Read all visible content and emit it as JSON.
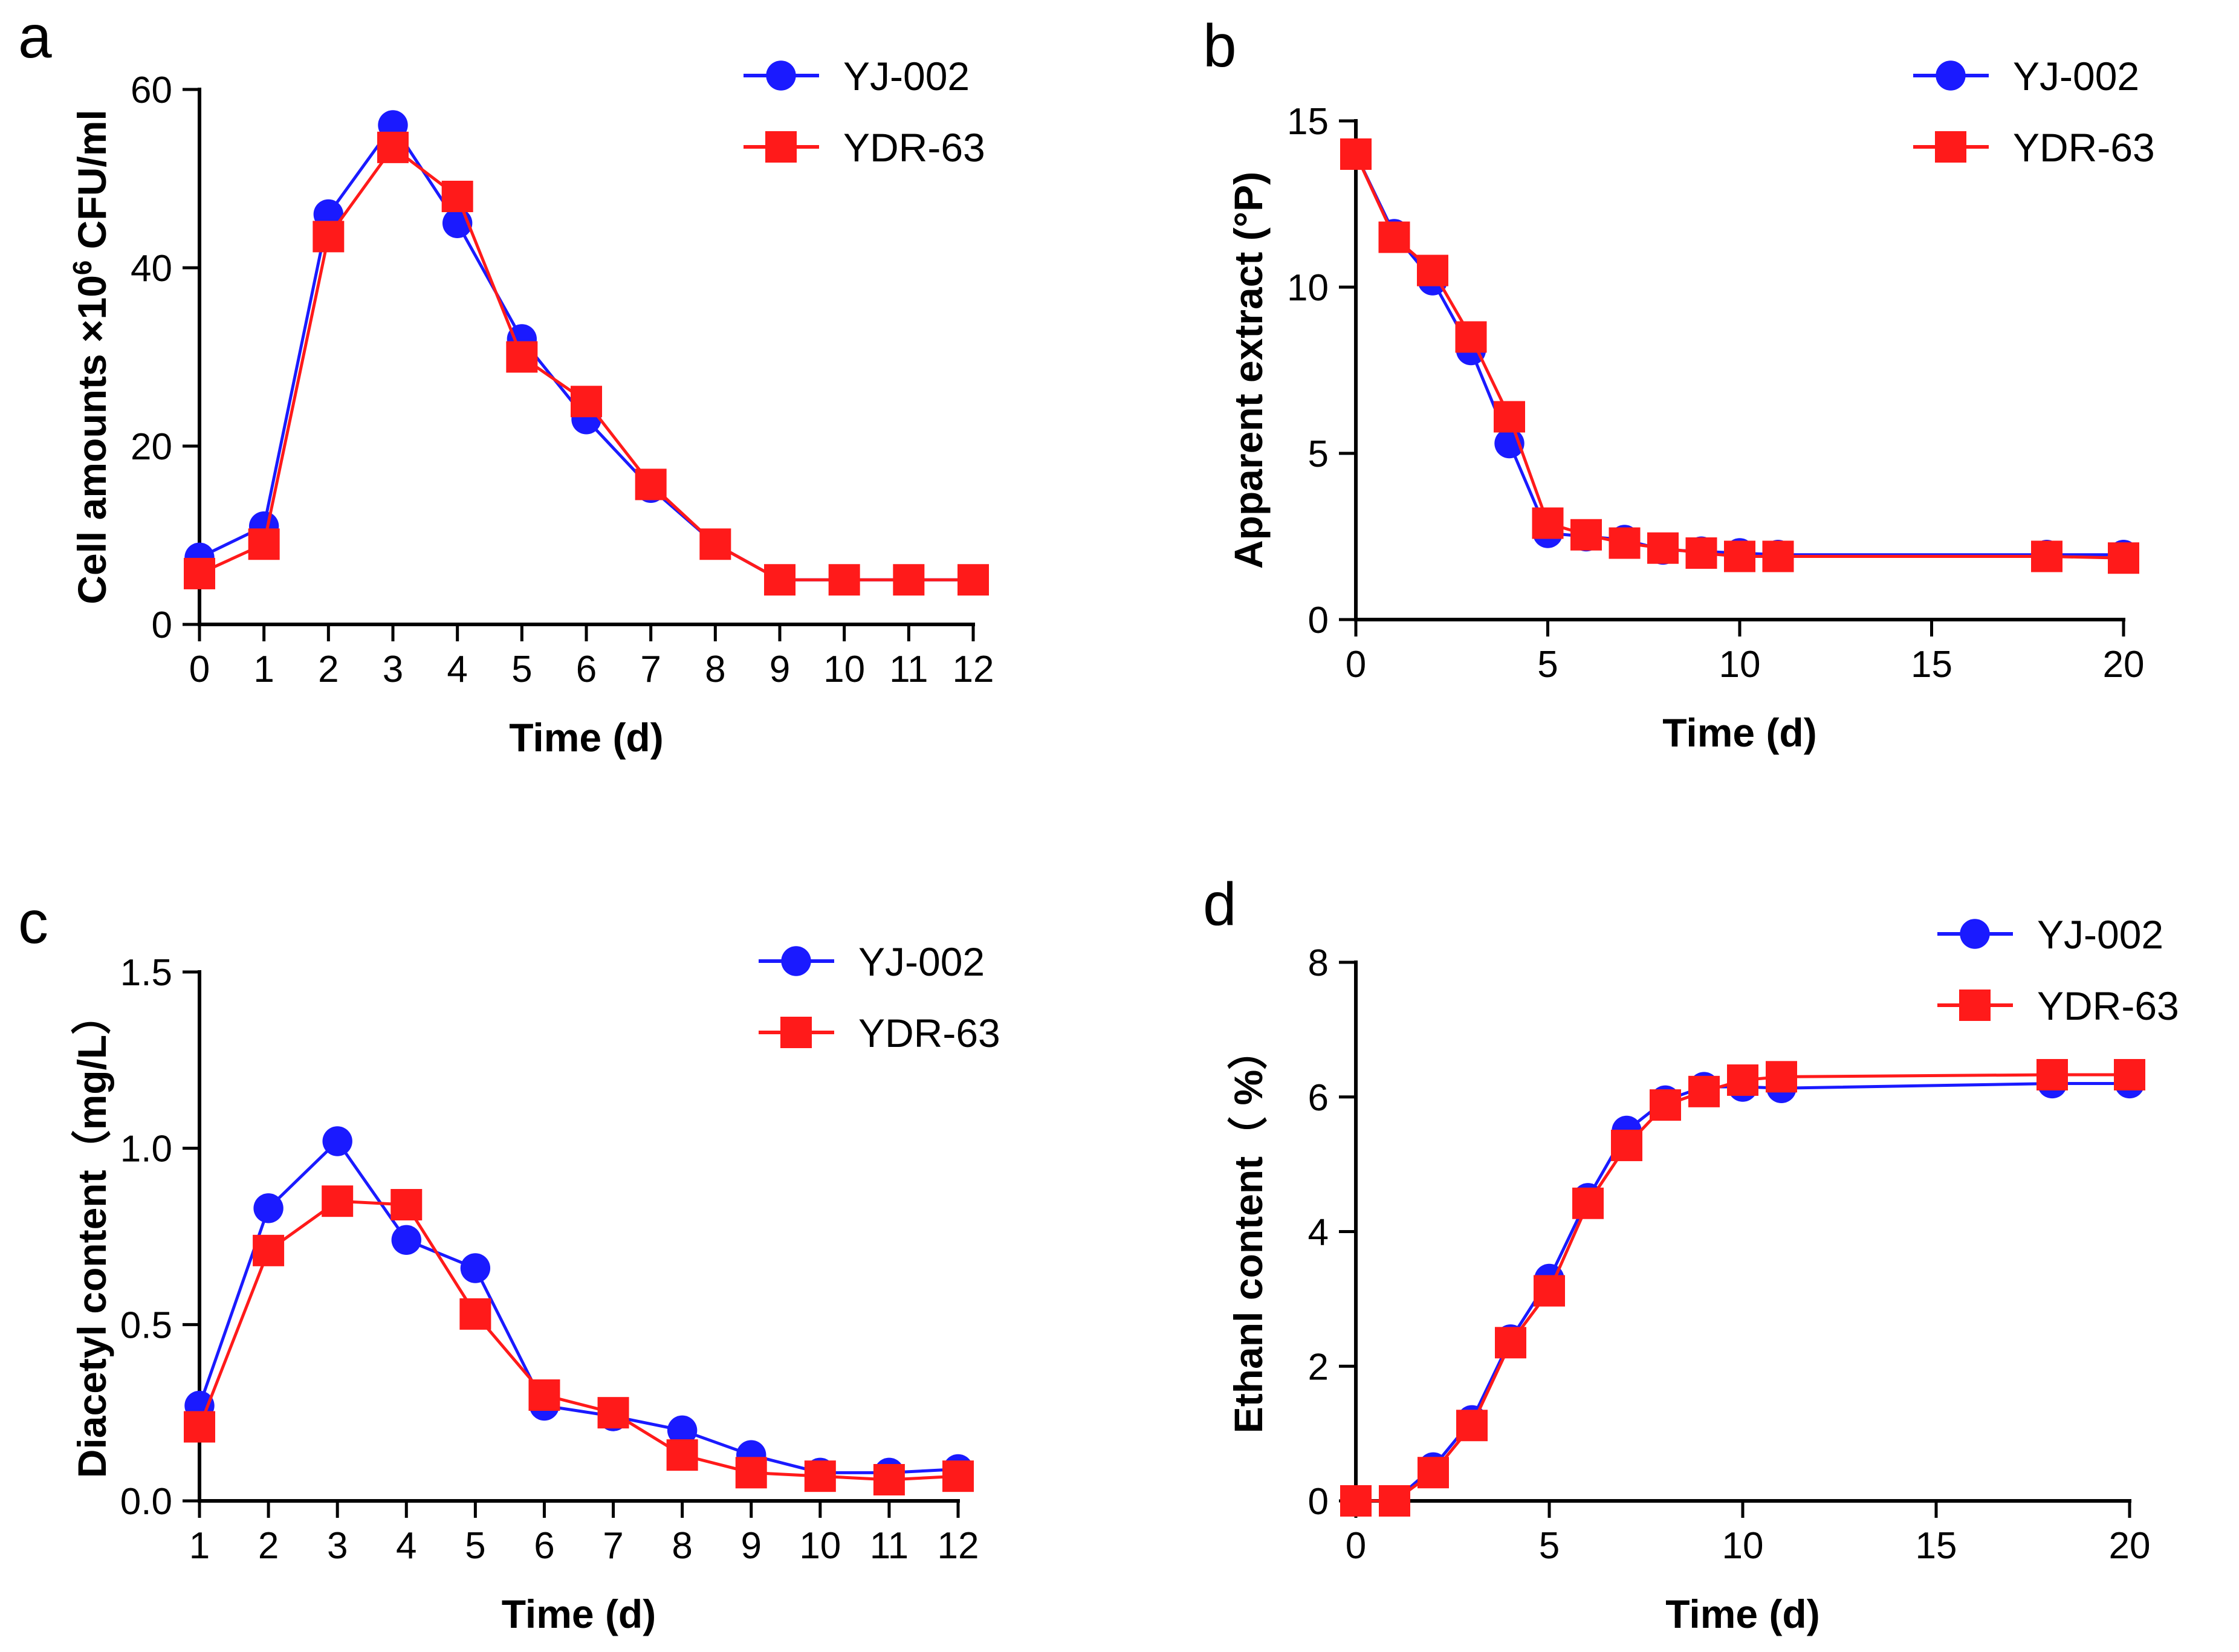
{
  "colors": {
    "yj": "#1a1aff",
    "ydr": "#ff1a1a"
  },
  "chart_data": [
    {
      "panel": "a",
      "type": "line",
      "title": "",
      "xlabel": "Time (d)",
      "ylabel_main": "Cell amounts ×10",
      "ylabel_sup": "6",
      "ylabel_tail": " CFU/ml",
      "xlim": [
        0,
        12
      ],
      "ylim": [
        0,
        60
      ],
      "xticks": [
        0,
        1,
        2,
        3,
        4,
        5,
        6,
        7,
        8,
        9,
        10,
        11,
        12
      ],
      "yticks": [
        0,
        20,
        40,
        60
      ],
      "legend_position": "top-right",
      "series": [
        {
          "name": "YJ-002",
          "marker": "circle",
          "color": "#1a1aff",
          "x": [
            0,
            1,
            2,
            3,
            4,
            5,
            6,
            7,
            8,
            9,
            10,
            11,
            12
          ],
          "y": [
            7.5,
            11,
            46,
            56,
            45,
            32,
            23,
            15.3,
            9,
            5,
            5,
            5,
            5
          ]
        },
        {
          "name": "YDR-63",
          "marker": "square",
          "color": "#ff1a1a",
          "x": [
            0,
            1,
            2,
            3,
            4,
            5,
            6,
            7,
            8,
            9,
            10,
            11,
            12
          ],
          "y": [
            5.7,
            9,
            43.5,
            53.5,
            48,
            30,
            25,
            15.7,
            9,
            5,
            5,
            5,
            5
          ]
        }
      ]
    },
    {
      "panel": "b",
      "type": "line",
      "title": "",
      "xlabel": "Time (d)",
      "ylabel_main": "Apparent extract (°P)",
      "ylabel_sup": "",
      "ylabel_tail": "",
      "xlim": [
        0,
        20
      ],
      "ylim": [
        0,
        15
      ],
      "xticks": [
        0,
        5,
        10,
        15,
        20
      ],
      "yticks": [
        0,
        5,
        10,
        15
      ],
      "legend_position": "top-right",
      "series": [
        {
          "name": "YJ-002",
          "marker": "circle",
          "color": "#1a1aff",
          "x": [
            0,
            1,
            2,
            3,
            4,
            5,
            6,
            7,
            8,
            9,
            10,
            11,
            18,
            20
          ],
          "y": [
            14,
            11.6,
            10.2,
            8.1,
            5.3,
            2.6,
            2.5,
            2.4,
            2.1,
            2.05,
            2.0,
            1.95,
            1.95,
            1.95
          ]
        },
        {
          "name": "YDR-63",
          "marker": "square",
          "color": "#ff1a1a",
          "x": [
            0,
            1,
            2,
            3,
            4,
            5,
            6,
            7,
            8,
            9,
            10,
            11,
            18,
            20
          ],
          "y": [
            14,
            11.5,
            10.5,
            8.5,
            6.1,
            2.9,
            2.55,
            2.3,
            2.15,
            2.0,
            1.9,
            1.9,
            1.9,
            1.85
          ]
        }
      ]
    },
    {
      "panel": "c",
      "type": "line",
      "title": "",
      "xlabel": "Time (d)",
      "ylabel_main": "Diacetyl content（mg/L）",
      "ylabel_sup": "",
      "ylabel_tail": "",
      "xlim": [
        1,
        12
      ],
      "ylim": [
        0,
        1.5
      ],
      "xticks": [
        1,
        2,
        3,
        4,
        5,
        6,
        7,
        8,
        9,
        10,
        11,
        12
      ],
      "yticks": [
        0.0,
        0.5,
        1.0,
        1.5
      ],
      "ytick_labels": [
        "0.0",
        "0.5",
        "1.0",
        "1.5"
      ],
      "legend_position": "top-right",
      "series": [
        {
          "name": "YJ-002",
          "marker": "circle",
          "color": "#1a1aff",
          "x": [
            1,
            2,
            3,
            4,
            5,
            6,
            7,
            8,
            9,
            10,
            11,
            12
          ],
          "y": [
            0.27,
            0.83,
            1.02,
            0.74,
            0.66,
            0.27,
            0.24,
            0.2,
            0.13,
            0.08,
            0.08,
            0.09
          ]
        },
        {
          "name": "YDR-63",
          "marker": "square",
          "color": "#ff1a1a",
          "x": [
            1,
            2,
            3,
            4,
            5,
            6,
            7,
            8,
            9,
            10,
            11,
            12
          ],
          "y": [
            0.21,
            0.71,
            0.85,
            0.84,
            0.53,
            0.3,
            0.25,
            0.13,
            0.08,
            0.07,
            0.06,
            0.07
          ]
        }
      ]
    },
    {
      "panel": "d",
      "type": "line",
      "title": "",
      "xlabel": "Time (d)",
      "ylabel_main": "Ethanl content（ %）",
      "ylabel_sup": "",
      "ylabel_tail": "",
      "xlim": [
        0,
        20
      ],
      "ylim": [
        0,
        8
      ],
      "xticks": [
        0,
        5,
        10,
        15,
        20
      ],
      "yticks": [
        0,
        2,
        4,
        6,
        8
      ],
      "legend_position": "top-right",
      "series": [
        {
          "name": "YJ-002",
          "marker": "circle",
          "color": "#1a1aff",
          "x": [
            0,
            1,
            2,
            3,
            4,
            5,
            6,
            7,
            8,
            9,
            10,
            11,
            18,
            20
          ],
          "y": [
            0,
            0,
            0.5,
            1.2,
            2.4,
            3.3,
            4.5,
            5.5,
            5.95,
            6.15,
            6.15,
            6.13,
            6.2,
            6.2
          ]
        },
        {
          "name": "YDR-63",
          "marker": "square",
          "color": "#ff1a1a",
          "x": [
            0,
            1,
            2,
            3,
            4,
            5,
            6,
            7,
            8,
            9,
            10,
            11,
            18,
            20
          ],
          "y": [
            0,
            0,
            0.42,
            1.12,
            2.35,
            3.12,
            4.42,
            5.28,
            5.88,
            6.08,
            6.25,
            6.3,
            6.33,
            6.33
          ]
        }
      ]
    }
  ]
}
